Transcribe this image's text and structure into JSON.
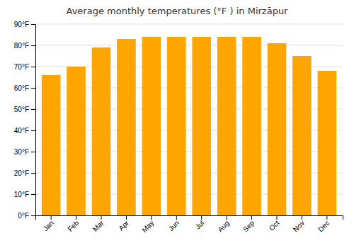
{
  "chart_data": {
    "type": "bar",
    "title": "Average monthly temperatures (°F ) in Mirzāpur",
    "categories": [
      "Jan",
      "Feb",
      "Mar",
      "Apr",
      "May",
      "Jun",
      "Jul",
      "Aug",
      "Sep",
      "Oct",
      "Nov",
      "Dec"
    ],
    "values": [
      66,
      70,
      79,
      83,
      84,
      84,
      84,
      84,
      84,
      81,
      75,
      68
    ],
    "color": "#FFA500",
    "ylim": [
      0,
      90
    ],
    "yticks": [
      {
        "value": 0,
        "label": "0°F"
      },
      {
        "value": 10,
        "label": "10°F"
      },
      {
        "value": 20,
        "label": "20°F"
      },
      {
        "value": 30,
        "label": "30°F"
      },
      {
        "value": 40,
        "label": "40°F"
      },
      {
        "value": 50,
        "label": "50°F"
      },
      {
        "value": 60,
        "label": "60°F"
      },
      {
        "value": 70,
        "label": "70°F"
      },
      {
        "value": 80,
        "label": "80°F"
      },
      {
        "value": 90,
        "label": "90°F"
      }
    ],
    "grid": true
  }
}
